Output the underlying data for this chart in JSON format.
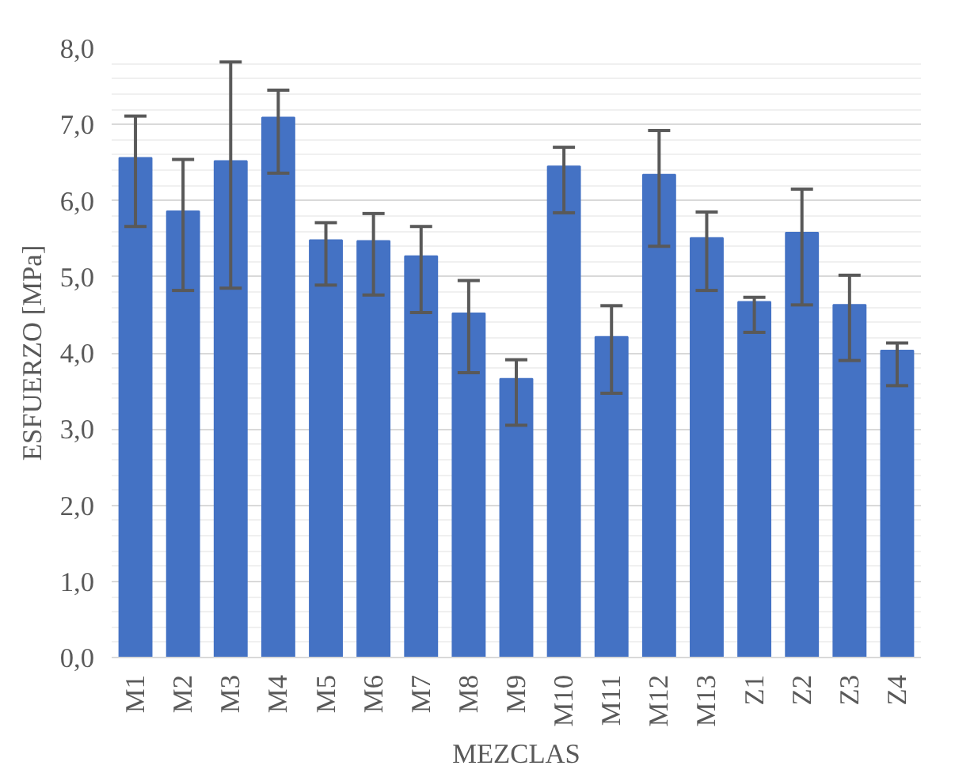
{
  "chart_data": {
    "type": "bar",
    "xlabel": "MEZCLAS",
    "ylabel": "ESFUERZO [MPa]",
    "categories": [
      "M1",
      "M2",
      "M3",
      "M4",
      "M5",
      "M6",
      "M7",
      "M8",
      "M9",
      "M10",
      "M11",
      "M12",
      "M13",
      "Z1",
      "Z2",
      "Z3",
      "Z4"
    ],
    "values": [
      6.56,
      5.86,
      6.52,
      7.09,
      5.48,
      5.47,
      5.27,
      4.52,
      3.66,
      6.45,
      4.21,
      6.34,
      5.51,
      4.67,
      5.58,
      4.63,
      4.03
    ],
    "errors": [
      [
        5.66,
        7.11
      ],
      [
        4.82,
        6.54
      ],
      [
        4.85,
        7.82
      ],
      [
        6.36,
        7.45
      ],
      [
        4.89,
        5.71
      ],
      [
        4.76,
        5.83
      ],
      [
        4.53,
        5.66
      ],
      [
        3.74,
        4.95
      ],
      [
        3.05,
        3.91
      ],
      [
        5.84,
        6.7
      ],
      [
        3.47,
        4.62
      ],
      [
        5.4,
        6.92
      ],
      [
        4.82,
        5.85
      ],
      [
        4.27,
        4.73
      ],
      [
        4.63,
        6.15
      ],
      [
        3.9,
        5.02
      ],
      [
        3.57,
        4.13
      ]
    ],
    "color": "#4472c4",
    "ylim": [
      0,
      8
    ],
    "yticks": [
      {
        "value": 0,
        "label": "0,0"
      },
      {
        "value": 1,
        "label": "1,0"
      },
      {
        "value": 2,
        "label": "2,0"
      },
      {
        "value": 3,
        "label": "3,0"
      },
      {
        "value": 4,
        "label": "4,0"
      },
      {
        "value": 5,
        "label": "5,0"
      },
      {
        "value": 6,
        "label": "6,0"
      },
      {
        "value": 7,
        "label": "7,0"
      },
      {
        "value": 8,
        "label": "8,0"
      }
    ],
    "grid": "y"
  }
}
